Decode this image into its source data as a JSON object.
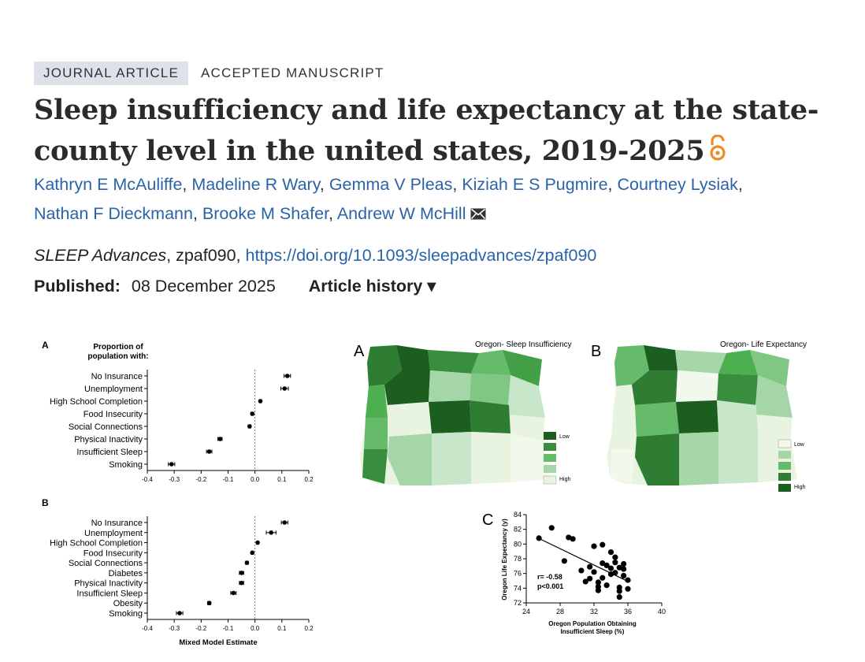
{
  "badges": {
    "type": "JOURNAL ARTICLE",
    "status": "ACCEPTED MANUSCRIPT"
  },
  "title": "Sleep insufficiency and life expectancy at the state-county level in the united states, 2019-2025",
  "authors": [
    "Kathryn E McAuliffe",
    "Madeline R Wary",
    "Gemma V Pleas",
    "Kiziah E S Pugmire",
    "Courtney Lysiak",
    "Nathan F Dieckmann",
    "Brooke M Shafer",
    "Andrew W McHill"
  ],
  "citation": {
    "journal": "SLEEP Advances",
    "id": ", zpaf090, ",
    "doi": "https://doi.org/10.1093/sleepadvances/zpaf090"
  },
  "published": {
    "label": "Published:",
    "date": "08 December 2025",
    "history": "Article history ▾"
  },
  "figure": {
    "panelA": {
      "letter": "A",
      "heading1": "Proportion of",
      "heading2": "population with:",
      "categories": [
        "No Insurance",
        "Unemployment",
        "High School Completion",
        "Food Insecurity",
        "Social Connections",
        "Physical Inactivity",
        "Insufficient Sleep",
        "Smoking"
      ],
      "values": [
        0.12,
        0.11,
        0.02,
        -0.01,
        -0.02,
        -0.13,
        -0.17,
        -0.31
      ],
      "errors": [
        0.012,
        0.014,
        0.004,
        0.005,
        0.005,
        0.008,
        0.01,
        0.012
      ],
      "xticks": [
        "-0.4",
        "-0.3",
        "-0.2",
        "-0.1",
        "0.0",
        "0.1",
        "0.2"
      ]
    },
    "panelB": {
      "letter": "B",
      "categories": [
        "No Insurance",
        "Unemployment",
        "High School Completion",
        "Food Insecurity",
        "Social Connections",
        "Diabetes",
        "Physical Inactivity",
        "Insufficient Sleep",
        "Obesity",
        "Smoking"
      ],
      "values": [
        0.11,
        0.06,
        0.01,
        -0.01,
        -0.03,
        -0.05,
        -0.05,
        -0.08,
        -0.17,
        -0.28
      ],
      "errors": [
        0.012,
        0.018,
        0.004,
        0.004,
        0.005,
        0.008,
        0.008,
        0.01,
        0.006,
        0.012
      ],
      "xticks": [
        "-0.4",
        "-0.3",
        "-0.2",
        "-0.1",
        "0.0",
        "0.1",
        "0.2"
      ],
      "xlabel": "Mixed Model Estimate"
    },
    "mapA": {
      "letter": "A",
      "title": "Oregon- Sleep Insufficiency",
      "legend_low": "Low",
      "legend_high": "High"
    },
    "mapB": {
      "letter": "B",
      "title": "Oregon- Life Expectancy",
      "legend_low": "Low",
      "legend_high": "High"
    },
    "scatter": {
      "letter": "C",
      "ylabel": "Oregon Life Expectancy (y)",
      "xlabel1": "Oregon Population Obtaining",
      "xlabel2": "Insufficient Sleep (%)",
      "stat1": "r= -0.58",
      "stat2": "p<0.001",
      "xticks": [
        "24",
        "28",
        "32",
        "36",
        "40"
      ],
      "yticks": [
        "72",
        "74",
        "76",
        "78",
        "80",
        "82",
        "84"
      ]
    }
  },
  "chart_data": [
    {
      "type": "scatter",
      "title": "",
      "xlabel": "Oregon Population Obtaining Insufficient Sleep (%)",
      "ylabel": "Oregon Life Expectancy (y)",
      "xlim": [
        24,
        40
      ],
      "ylim": [
        72,
        84
      ],
      "x": [
        25.5,
        27,
        28.5,
        29,
        29.5,
        31,
        31.5,
        32,
        32,
        32.5,
        32.5,
        33,
        33,
        33.5,
        33.5,
        34,
        34,
        34,
        34.5,
        34.5,
        35,
        35,
        35,
        35.5,
        35.5,
        35.5,
        36,
        36,
        31.5,
        33,
        34.5,
        32.5,
        30.5,
        35
      ],
      "y": [
        80.8,
        82.2,
        77.7,
        80.9,
        80.7,
        74.9,
        76.9,
        79.7,
        76.2,
        74.2,
        73.7,
        79.9,
        75.4,
        77.1,
        74.4,
        78.9,
        76.7,
        75.9,
        76.1,
        77.5,
        76.8,
        74.1,
        73.6,
        77.3,
        75.7,
        76.6,
        75.1,
        73.9,
        75.3,
        77.4,
        78.2,
        74.8,
        76.4,
        72.8
      ],
      "annotations": [
        "r= -0.58",
        "p<0.001"
      ]
    }
  ]
}
